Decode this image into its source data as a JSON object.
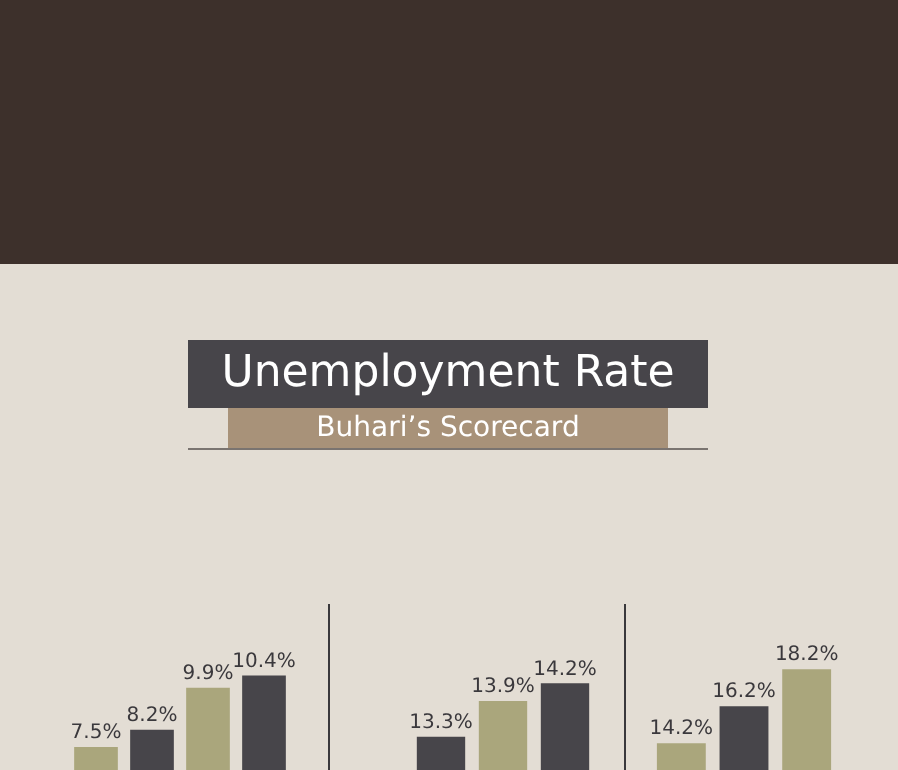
{
  "chart_data": [
    {
      "type": "other",
      "title": "Unemployment Rate",
      "subtitle": "Buhari’s Scorecard"
    },
    {
      "type": "bar",
      "categories": [
        null,
        null,
        null,
        null
      ],
      "values": [
        7.5,
        8.2,
        9.9,
        10.4
      ],
      "value_labels": [
        "7.5%",
        "8.2%",
        "9.9%",
        "10.4%"
      ],
      "colors": [
        "#aaa67c",
        "#47454a",
        "#aaa67c",
        "#47454a"
      ],
      "grid": false,
      "legend": false
    },
    {
      "type": "bar",
      "categories": [
        null,
        null,
        null
      ],
      "values": [
        13.3,
        13.9,
        14.2
      ],
      "value_labels": [
        "13.3%",
        "13.9%",
        "14.2%"
      ],
      "colors": [
        "#47454a",
        "#aaa67c",
        "#47454a"
      ],
      "grid": false,
      "legend": false
    },
    {
      "type": "bar",
      "categories": [
        null,
        null,
        null
      ],
      "values": [
        14.2,
        16.2,
        18.2
      ],
      "value_labels": [
        "14.2%",
        "16.2%",
        "18.2%"
      ],
      "colors": [
        "#aaa67c",
        "#47454a",
        "#aaa67c"
      ],
      "grid": false,
      "legend": false
    }
  ]
}
